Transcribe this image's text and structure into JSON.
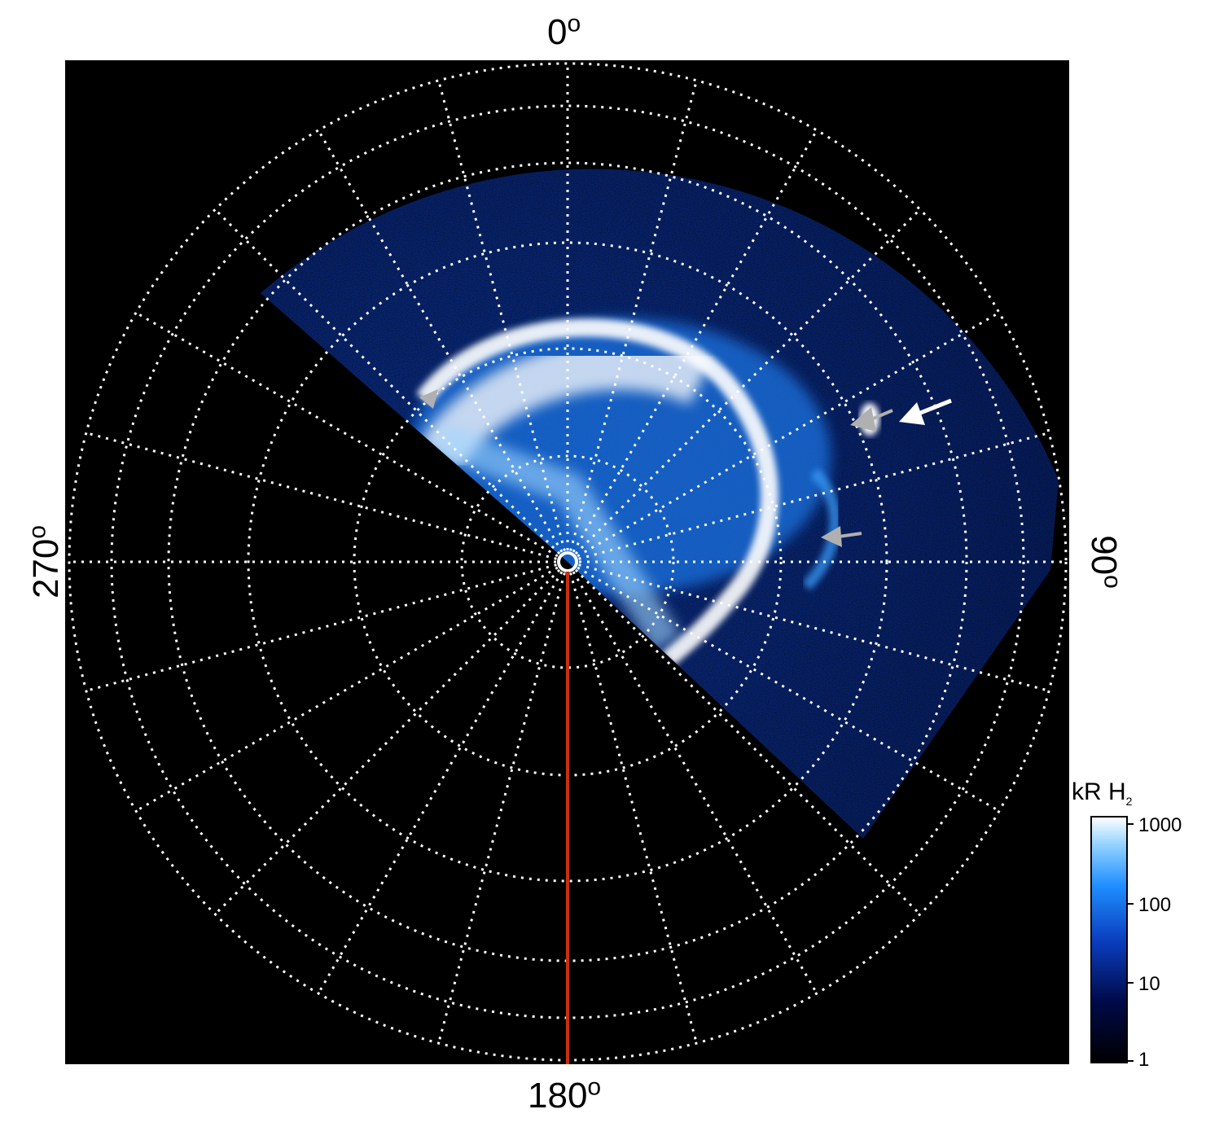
{
  "axis_labels": {
    "top": "0",
    "bottom": "180",
    "left": "270",
    "right": "90",
    "degree_symbol": "o"
  },
  "colorbar": {
    "title_main": "kR H",
    "title_sub": "2",
    "ticks": [
      "1",
      "10",
      "100",
      "1000"
    ],
    "colors": [
      "#000000",
      "#000a4a",
      "#0a3fc0",
      "#1f8fff",
      "#8fd0ff",
      "#ffffff"
    ]
  },
  "colors": {
    "background": "#000000",
    "grid": "#ffffff",
    "meridian_line": "#c8300a",
    "aurora_dim": "#0b3a9a",
    "aurora_mid": "#1e78e8",
    "aurora_bright": "#ffffff",
    "arrow_gray": "#b0b0b0",
    "arrow_white": "#ffffff"
  },
  "icons": [
    "arrow-pointer-icon"
  ]
}
